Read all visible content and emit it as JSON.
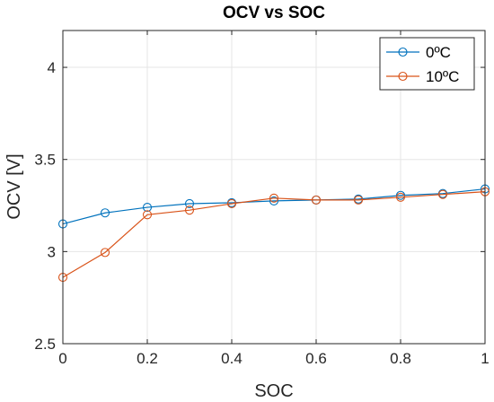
{
  "chart_data": {
    "type": "line",
    "title": "OCV vs SOC",
    "xlabel": "SOC",
    "ylabel": "OCV [V]",
    "xlim": [
      0,
      1
    ],
    "ylim": [
      2.5,
      4.2
    ],
    "x_ticks": [
      "0",
      "0.2",
      "0.4",
      "0.6",
      "0.8",
      "1"
    ],
    "y_ticks": [
      "2.5",
      "3",
      "3.5",
      "4"
    ],
    "grid": true,
    "legend_position": "top-right",
    "x": [
      0,
      0.1,
      0.2,
      0.3,
      0.4,
      0.5,
      0.6,
      0.7,
      0.8,
      0.9,
      1.0
    ],
    "series": [
      {
        "name": "0ºC",
        "color": "#0072BD",
        "marker": "circle",
        "values": [
          3.15,
          3.21,
          3.24,
          3.26,
          3.265,
          3.275,
          3.28,
          3.285,
          3.305,
          3.315,
          3.34
        ]
      },
      {
        "name": "10ºC",
        "color": "#D95319",
        "marker": "circle",
        "values": [
          2.86,
          2.995,
          3.2,
          3.225,
          3.26,
          3.29,
          3.28,
          3.28,
          3.295,
          3.31,
          3.325
        ]
      }
    ]
  }
}
